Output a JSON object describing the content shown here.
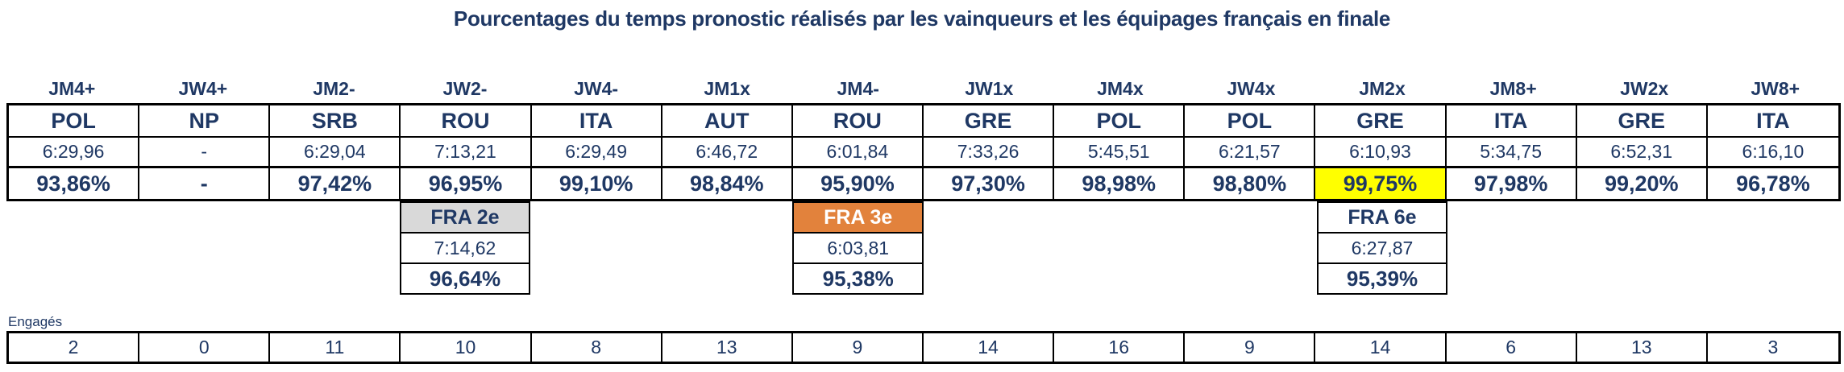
{
  "colors": {
    "text_navy": "#1F3864",
    "border": "#000000",
    "best_pct_highlight": "#FFFF00",
    "fra_2e_label_bg": "#D9D9D9",
    "fra_3e_label_bg": "#E2823C",
    "fra_3e_label_text": "#FFFFFF"
  },
  "chart_data": {
    "type": "table",
    "title": "Pourcentages du temps pronostic réalisés par les vainqueurs et les équipages français en finale",
    "entries_label": "Engagés",
    "row_semantics": [
      "event",
      "winner_country",
      "winner_time",
      "winner_pct_of_prognostic",
      "entries_count"
    ],
    "columns": [
      {
        "event": "JM4+",
        "winner": "POL",
        "time": "6:29,96",
        "pct": "93,86%",
        "entries": "2"
      },
      {
        "event": "JW4+",
        "winner": "NP",
        "time": "-",
        "pct": "-",
        "entries": "0"
      },
      {
        "event": "JM2-",
        "winner": "SRB",
        "time": "6:29,04",
        "pct": "97,42%",
        "entries": "11"
      },
      {
        "event": "JW2-",
        "winner": "ROU",
        "time": "7:13,21",
        "pct": "96,95%",
        "entries": "10"
      },
      {
        "event": "JW4-",
        "winner": "ITA",
        "time": "6:29,49",
        "pct": "99,10%",
        "entries": "8"
      },
      {
        "event": "JM1x",
        "winner": "AUT",
        "time": "6:46,72",
        "pct": "98,84%",
        "entries": "13"
      },
      {
        "event": "JM4-",
        "winner": "ROU",
        "time": "6:01,84",
        "pct": "95,90%",
        "entries": "9"
      },
      {
        "event": "JW1x",
        "winner": "GRE",
        "time": "7:33,26",
        "pct": "97,30%",
        "entries": "14"
      },
      {
        "event": "JM4x",
        "winner": "POL",
        "time": "5:45,51",
        "pct": "98,98%",
        "entries": "16"
      },
      {
        "event": "JW4x",
        "winner": "POL",
        "time": "6:21,57",
        "pct": "98,80%",
        "entries": "9"
      },
      {
        "event": "JM2x",
        "winner": "GRE",
        "time": "6:10,93",
        "pct": "99,75%",
        "entries": "14"
      },
      {
        "event": "JM8+",
        "winner": "ITA",
        "time": "5:34,75",
        "pct": "97,98%",
        "entries": "6"
      },
      {
        "event": "JW2x",
        "winner": "GRE",
        "time": "6:52,31",
        "pct": "99,20%",
        "entries": "13"
      },
      {
        "event": "JW8+",
        "winner": "ITA",
        "time": "6:16,10",
        "pct": "96,78%",
        "entries": "3"
      }
    ],
    "annotations": {
      "highlighted_best_pct_event": "JM2x",
      "highlighted_best_pct_value": "99,75%"
    },
    "french_crews": [
      {
        "event": "JW2-",
        "rank_label": "FRA 2e",
        "time": "7:14,62",
        "pct": "96,64%"
      },
      {
        "event": "JM4-",
        "rank_label": "FRA 3e",
        "time": "6:03,81",
        "pct": "95,38%"
      },
      {
        "event": "JM2x",
        "rank_label": "FRA 6e",
        "time": "6:27,87",
        "pct": "95,39%"
      }
    ]
  }
}
